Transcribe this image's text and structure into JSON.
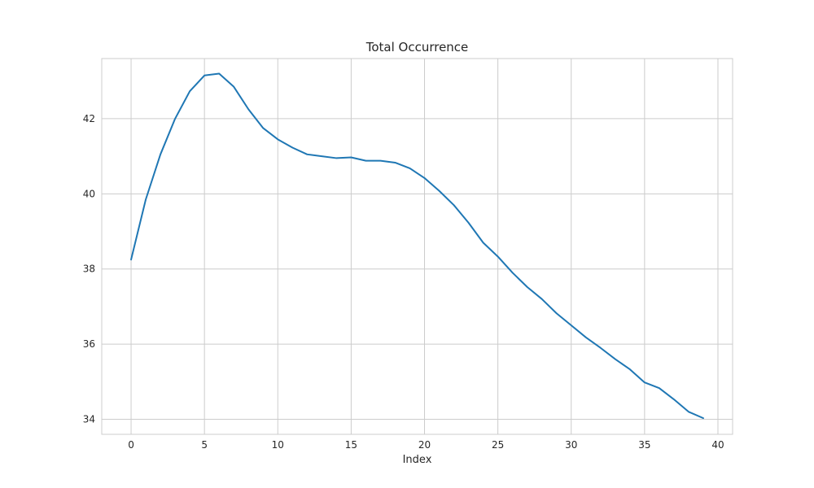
{
  "chart_data": {
    "type": "line",
    "title": "Total Occurrence",
    "xlabel": "Index",
    "ylabel": "",
    "xlim": [
      -2,
      41
    ],
    "ylim": [
      33.6,
      43.6
    ],
    "xticks": [
      0,
      5,
      10,
      15,
      20,
      25,
      30,
      35,
      40
    ],
    "yticks": [
      34,
      36,
      38,
      40,
      42
    ],
    "grid": true,
    "line_color": "#1f77b4",
    "grid_color": "#cccccc",
    "series": [
      {
        "x": [
          0,
          1,
          2,
          3,
          4,
          5,
          6,
          7,
          8,
          9,
          10,
          11,
          12,
          13,
          14,
          15,
          16,
          17,
          18,
          19,
          20,
          21,
          22,
          23,
          24,
          25,
          26,
          27,
          28,
          29,
          30,
          31,
          32,
          33,
          34,
          35,
          36,
          37,
          38,
          39
        ],
        "values": [
          38.25,
          39.85,
          41.05,
          42.0,
          42.73,
          43.15,
          43.2,
          42.85,
          42.25,
          41.75,
          41.45,
          41.23,
          41.05,
          41.0,
          40.95,
          40.97,
          40.88,
          40.88,
          40.83,
          40.68,
          40.42,
          40.08,
          39.7,
          39.23,
          38.7,
          38.33,
          37.9,
          37.52,
          37.2,
          36.82,
          36.5,
          36.18,
          35.9,
          35.6,
          35.33,
          34.98,
          34.83,
          34.53,
          34.2,
          34.03
        ]
      }
    ]
  }
}
